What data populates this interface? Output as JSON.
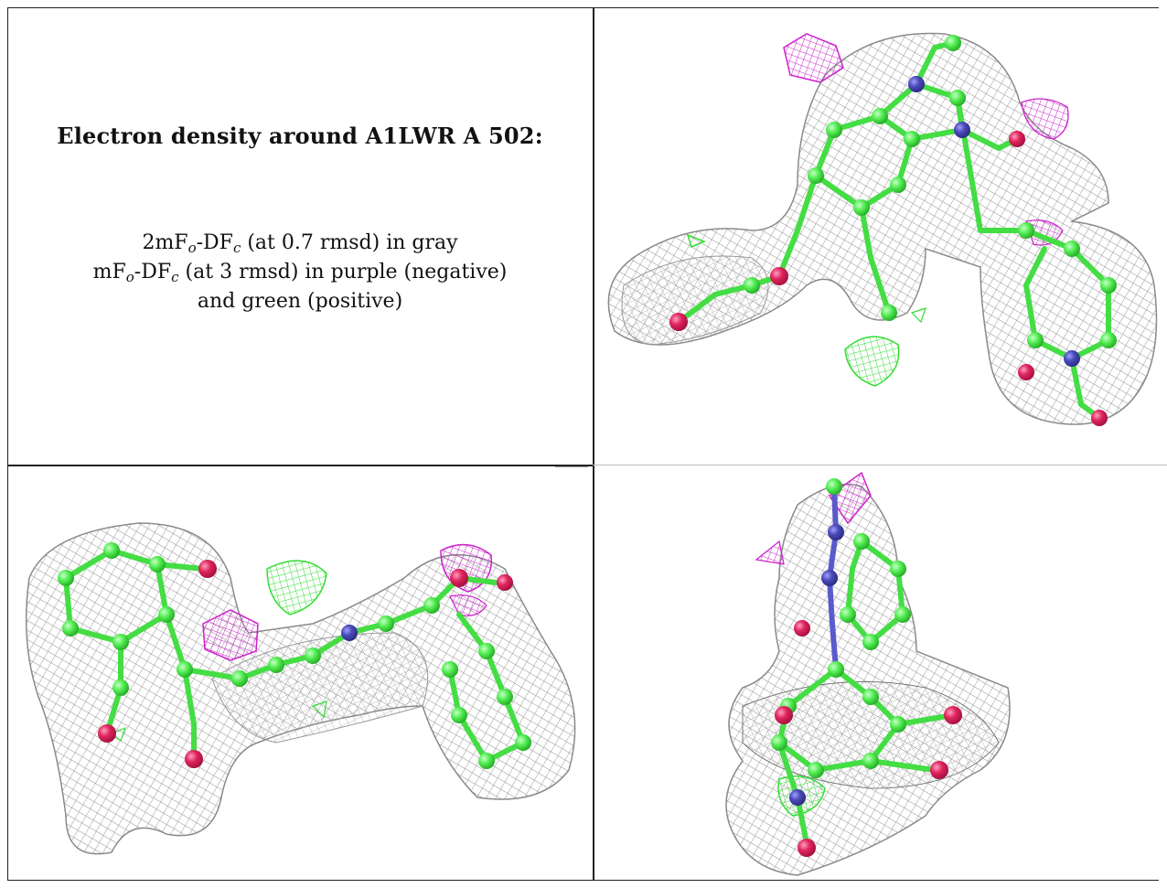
{
  "caption": {
    "title": "Electron density around A1LWR A 502:",
    "line1": "2mFo-DFc (at 0.7 rmsd) in gray",
    "line2": "mFo-DFc (at 3 rmsd) in purple (negative)",
    "line3": "and green (positive)",
    "line1_parts": {
      "a": "2mF",
      "sub1": "o",
      "b": "-DF",
      "sub2": "c",
      "c": " (at 0.7 rmsd) in gray"
    },
    "line2_parts": {
      "a": "mF",
      "sub1": "o",
      "b": "-DF",
      "sub2": "c",
      "c": " (at 3 rmsd) in purple (negative)"
    }
  },
  "colors": {
    "mesh_gray": "#9a9a9a",
    "difference_negative": "#cc22cc",
    "difference_positive": "#33ee33",
    "carbon": "#55ee55",
    "nitrogen": "#4a4ab8",
    "oxygen": "#e0245e",
    "border": "#222222"
  }
}
